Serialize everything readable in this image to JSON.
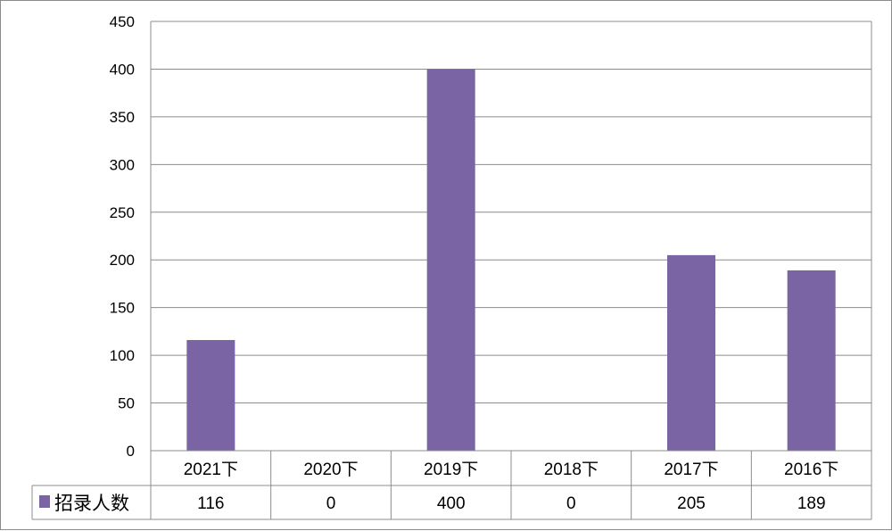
{
  "chart_data": {
    "type": "bar",
    "title": "",
    "xlabel": "",
    "ylabel": "",
    "categories": [
      "2021下",
      "2020下",
      "2019下",
      "2018下",
      "2017下",
      "2016下"
    ],
    "series": [
      {
        "name": "招录人数",
        "values": [
          116,
          0,
          400,
          0,
          205,
          189
        ],
        "color": "#7b64a3"
      }
    ],
    "ylim": [
      0,
      450
    ],
    "yticks": [
      0,
      50,
      100,
      150,
      200,
      250,
      300,
      350,
      400,
      450
    ],
    "grid": true,
    "legend": "data-table",
    "data_table": true
  }
}
